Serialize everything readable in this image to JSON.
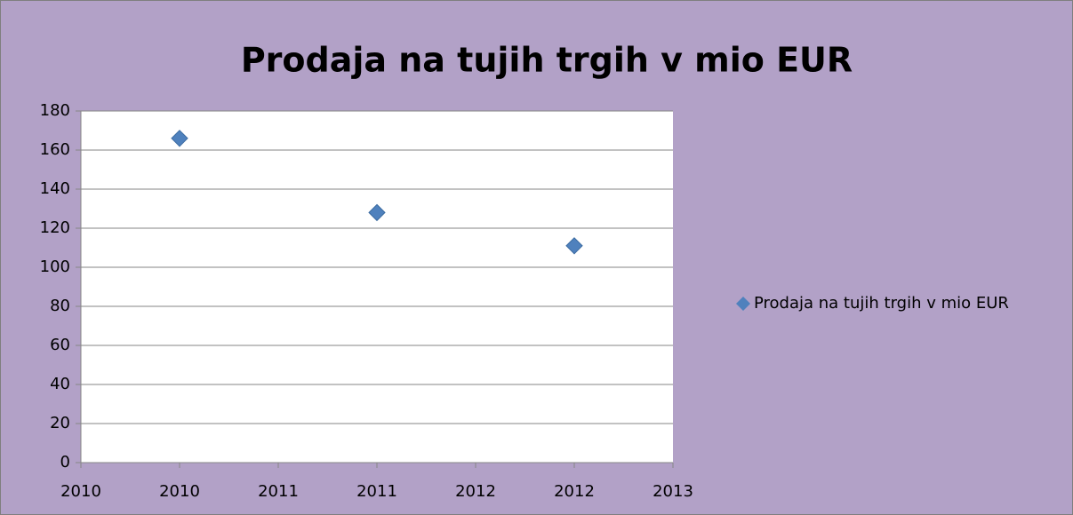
{
  "chart_data": {
    "type": "scatter",
    "title": "Prodaja na tujih trgih v mio EUR",
    "series": [
      {
        "name": "Prodaja na tujih trgih v mio EUR",
        "color": "#4f81bd",
        "x": [
          2010,
          2011,
          2012
        ],
        "values": [
          166,
          128,
          111
        ]
      }
    ],
    "xlim": [
      2009.5,
      2012.5
    ],
    "xticks": [
      {
        "value": 2009.5,
        "label": "2010"
      },
      {
        "value": 2010,
        "label": "2010"
      },
      {
        "value": 2010.5,
        "label": "2011"
      },
      {
        "value": 2011,
        "label": "2011"
      },
      {
        "value": 2011.5,
        "label": "2012"
      },
      {
        "value": 2012,
        "label": "2012"
      },
      {
        "value": 2012.5,
        "label": "2013"
      }
    ],
    "ylim": [
      0,
      180
    ],
    "yticks": [
      0,
      20,
      40,
      60,
      80,
      100,
      120,
      140,
      160,
      180
    ],
    "grid": true,
    "legend": "right"
  }
}
